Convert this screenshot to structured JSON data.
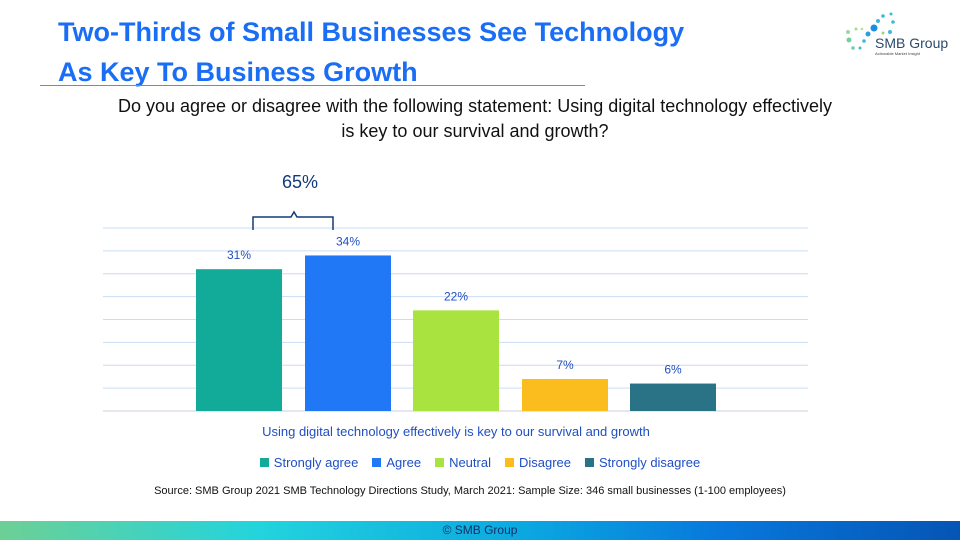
{
  "title_lines": [
    "Two-Thirds of Small Businesses See Technology",
    "As Key To Business Growth"
  ],
  "logo": {
    "name": "SMB Group",
    "tagline": "Actionable Market Insight"
  },
  "question": "Do you agree or disagree with the following statement: Using digital technology effectively is key to our survival and growth?",
  "bracket_label": "65%",
  "source": "Source: SMB Group 2021 SMB Technology Directions Study, March 2021: Sample Size: 346 small businesses (1-100 employees)",
  "footer": "© SMB Group",
  "chart_data": {
    "type": "bar",
    "title": "",
    "xlabel": "Using digital technology effectively is key to our survival and growth",
    "ylabel": "",
    "ylim": [
      0,
      40
    ],
    "grid": true,
    "legend_placement": "bottom",
    "categories": [
      "Strongly agree",
      "Agree",
      "Neutral",
      "Disagree",
      "Strongly disagree"
    ],
    "values": [
      31,
      34,
      22,
      7,
      6
    ],
    "labels": [
      "31%",
      "34%",
      "22%",
      "7%",
      "6%"
    ],
    "colors": [
      "#12ab9a",
      "#2178f6",
      "#a9e340",
      "#fbbd1e",
      "#2a7387"
    ]
  }
}
